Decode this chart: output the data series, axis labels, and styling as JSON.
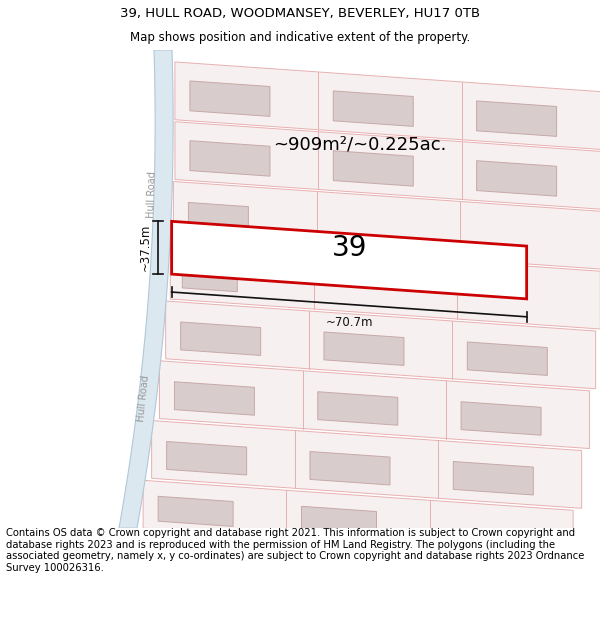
{
  "title_line1": "39, HULL ROAD, WOODMANSEY, BEVERLEY, HU17 0TB",
  "title_line2": "Map shows position and indicative extent of the property.",
  "footer_text": "Contains OS data © Crown copyright and database right 2021. This information is subject to Crown copyright and database rights 2023 and is reproduced with the permission of HM Land Registry. The polygons (including the associated geometry, namely x, y co-ordinates) are subject to Crown copyright and database rights 2023 Ordnance Survey 100026316.",
  "area_label": "~909m²/~0.225ac.",
  "plot_number": "39",
  "width_label": "~70.7m",
  "height_label": "~37.5m",
  "road_label_upper": "Hull Road",
  "road_label_lower": "Hull Road",
  "bg_color": "#ffffff",
  "map_bg": "#f7f2f2",
  "road_fill": "#dce8f0",
  "road_edge": "#b0c8d8",
  "plot_outline_color": "#cc0000",
  "parcel_fill": "#f7f0f0",
  "parcel_edge": "#e8b0b0",
  "building_fill": "#d8cccc",
  "building_edge": "#c8a8a8",
  "dim_color": "#111111",
  "title_fontsize": 9.5,
  "subtitle_fontsize": 8.5,
  "footer_fontsize": 7.2,
  "road_label_fontsize": 7,
  "area_fontsize": 13,
  "plot_num_fontsize": 20,
  "dim_fontsize": 8.5
}
